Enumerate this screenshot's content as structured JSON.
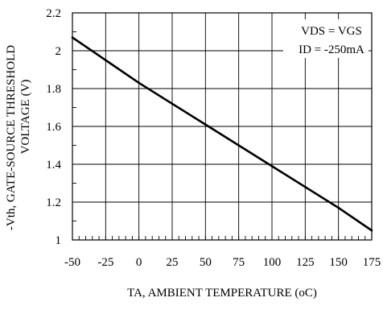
{
  "chart_data": {
    "type": "line",
    "title": "",
    "xlabel": "TA, AMBIENT TEMPERATURE (oC)",
    "ylabel_line1": "-Vth, GATE-SOURCE THRESHOLD",
    "ylabel_line2": "VOLTAGE (V)",
    "xlim": [
      -50,
      175
    ],
    "ylim": [
      1,
      2.2
    ],
    "x_ticks": [
      -50,
      -25,
      0,
      25,
      50,
      75,
      100,
      125,
      150,
      175
    ],
    "x_tick_labels": [
      "-50",
      "-25",
      "0",
      "25",
      "50",
      "75",
      "100",
      "125",
      "150",
      "175"
    ],
    "y_ticks": [
      1,
      1.2,
      1.4,
      1.6,
      1.8,
      2,
      2.2
    ],
    "y_tick_labels": [
      "1",
      "1.2",
      "1.4",
      "1.6",
      "1.8",
      "2",
      "2.2"
    ],
    "grid": true,
    "annotations": [
      "VDS = VGS",
      "ID = -250mA"
    ],
    "annotation_placement": "top-right",
    "series": [
      {
        "x": [
          -50,
          -25,
          0,
          25,
          50,
          75,
          100,
          125,
          150,
          175
        ],
        "y": [
          2.07,
          1.95,
          1.83,
          1.72,
          1.61,
          1.5,
          1.39,
          1.28,
          1.17,
          1.05
        ]
      }
    ]
  }
}
